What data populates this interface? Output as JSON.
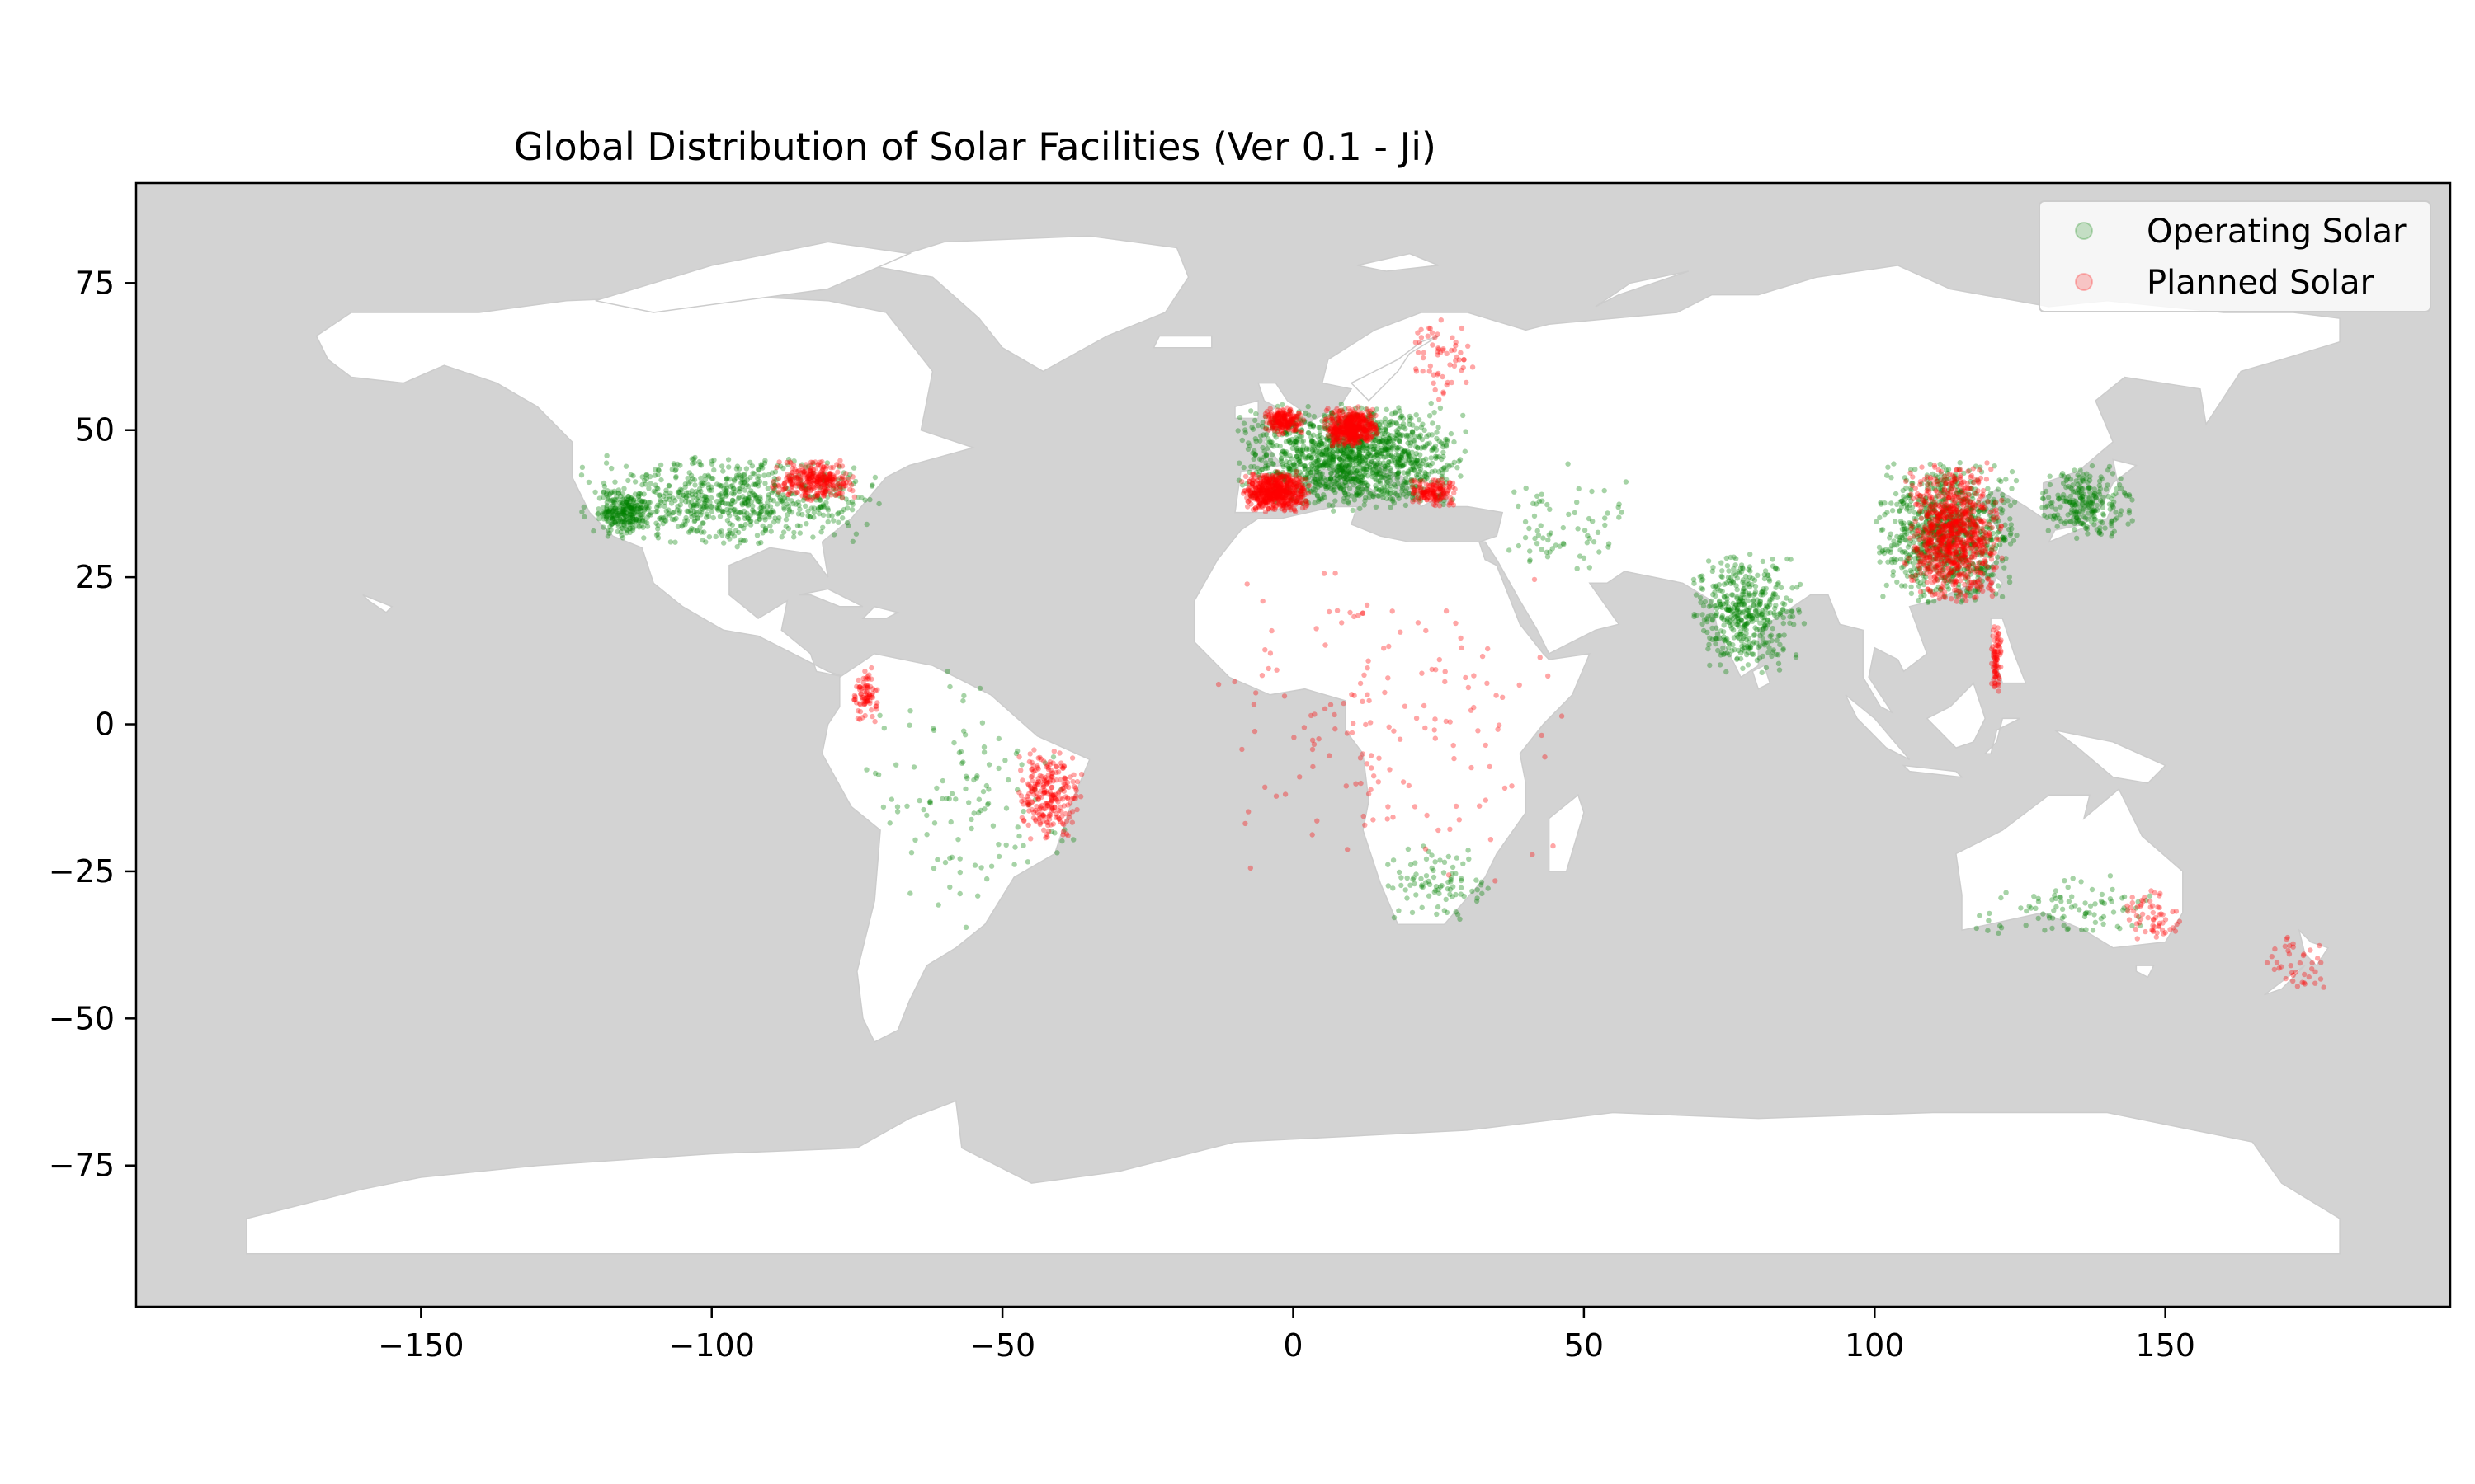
{
  "chart_data": {
    "type": "scatter",
    "title": "Global Distribution of Solar Facilities (Ver 0.1 - Ji)",
    "xlabel": "",
    "ylabel": "",
    "xlim": [
      -199,
      199
    ],
    "ylim": [
      -99,
      92
    ],
    "xticks": [
      -150,
      -100,
      -50,
      0,
      50,
      100,
      150
    ],
    "yticks": [
      -75,
      -50,
      -25,
      0,
      25,
      50,
      75
    ],
    "xtick_labels": [
      "−150",
      "−100",
      "−50",
      "0",
      "50",
      "100",
      "150"
    ],
    "ytick_labels": [
      "−75",
      "−50",
      "−25",
      "0",
      "25",
      "50",
      "75"
    ],
    "ocean_color": "#d3d3d3",
    "land_color": "#ffffff",
    "border_color": "#cccccc",
    "grid": false,
    "legend": {
      "placement": "top-right",
      "entries": [
        {
          "label": "Operating Solar",
          "color": "#008000"
        },
        {
          "label": "Planned Solar",
          "color": "#ff0000"
        }
      ]
    },
    "series": [
      {
        "name": "Operating Solar",
        "color": "#008000",
        "clusters": [
          {
            "lon": [
              -124,
              -70
            ],
            "lat": [
              30,
              46
            ],
            "n": 700
          },
          {
            "lon": [
              -120,
              -110
            ],
            "lat": [
              32,
              40
            ],
            "n": 250
          },
          {
            "lon": [
              -10,
              30
            ],
            "lat": [
              36,
              55
            ],
            "n": 1400
          },
          {
            "lon": [
              68,
              88
            ],
            "lat": [
              8,
              30
            ],
            "n": 450
          },
          {
            "lon": [
              100,
              125
            ],
            "lat": [
              20,
              45
            ],
            "n": 900
          },
          {
            "lon": [
              128,
              145
            ],
            "lat": [
              31,
              44
            ],
            "n": 250
          },
          {
            "lon": [
              -75,
              -35
            ],
            "lat": [
              -35,
              10
            ],
            "n": 120
          },
          {
            "lon": [
              15,
              35
            ],
            "lat": [
              -34,
              -20
            ],
            "n": 90
          },
          {
            "lon": [
              115,
              153
            ],
            "lat": [
              -38,
              -25
            ],
            "n": 90
          },
          {
            "lon": [
              35,
              60
            ],
            "lat": [
              25,
              45
            ],
            "n": 70
          }
        ]
      },
      {
        "name": "Planned Solar",
        "color": "#ff0000",
        "clusters": [
          {
            "lon": [
              -9,
              3
            ],
            "lat": [
              36,
              43
            ],
            "n": 600
          },
          {
            "lon": [
              5,
              15
            ],
            "lat": [
              47,
              54
            ],
            "n": 500
          },
          {
            "lon": [
              -5,
              2
            ],
            "lat": [
              49,
              54
            ],
            "n": 200
          },
          {
            "lon": [
              20,
              28
            ],
            "lat": [
              37,
              42
            ],
            "n": 150
          },
          {
            "lon": [
              -90,
              -75
            ],
            "lat": [
              38,
              45
            ],
            "n": 300
          },
          {
            "lon": [
              -48,
              -36
            ],
            "lat": [
              -20,
              -4
            ],
            "n": 250
          },
          {
            "lon": [
              -76,
              -71
            ],
            "lat": [
              0,
              10
            ],
            "n": 80
          },
          {
            "lon": [
              105,
              122
            ],
            "lat": [
              20,
              45
            ],
            "n": 900
          },
          {
            "lon": [
              120,
              122
            ],
            "lat": [
              5,
              18
            ],
            "n": 80
          },
          {
            "lon": [
              143,
              153
            ],
            "lat": [
              -38,
              -28
            ],
            "n": 60
          },
          {
            "lon": [
              166,
              178
            ],
            "lat": [
              -46,
              -35
            ],
            "n": 40
          },
          {
            "lon": [
              20,
              32
            ],
            "lat": [
              55,
              70
            ],
            "n": 60
          },
          {
            "lon": [
              -20,
              50
            ],
            "lat": [
              -30,
              30
            ],
            "n": 160
          }
        ]
      }
    ]
  }
}
